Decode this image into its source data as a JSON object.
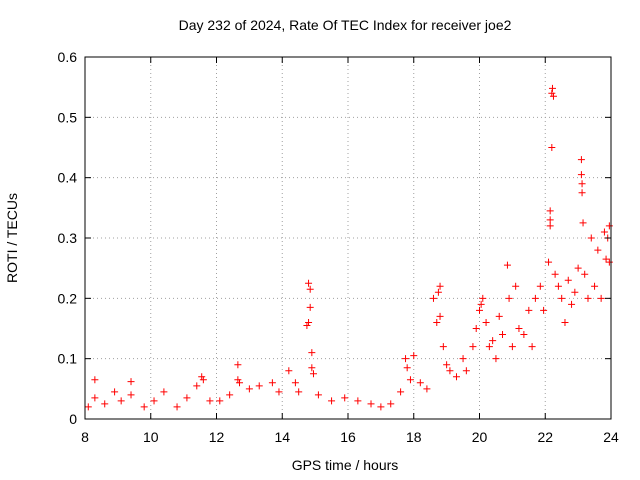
{
  "chart_data": {
    "type": "scatter",
    "title": "Day 232 of 2024, Rate Of TEC Index for receiver joe2",
    "xlabel": "GPS time / hours",
    "ylabel": "ROTI / TECUs",
    "xlim": [
      8,
      24
    ],
    "ylim": [
      0,
      0.6
    ],
    "xticks": [
      8,
      10,
      12,
      14,
      16,
      18,
      20,
      22,
      24
    ],
    "yticks": [
      0,
      0.1,
      0.2,
      0.3,
      0.4,
      0.5,
      0.6
    ],
    "xtick_labels": [
      "8",
      "10",
      "12",
      "14",
      "16",
      "18",
      "20",
      "22",
      "24"
    ],
    "ytick_labels": [
      "0",
      "0.1",
      "0.2",
      "0.3",
      "0.4",
      "0.5",
      "0.6"
    ],
    "grid": true,
    "marker": "+",
    "colors": {
      "points": "#ff0000",
      "grid": "#a0a0a0",
      "axes": "#000000",
      "background": "#ffffff"
    },
    "series": [
      {
        "points": [
          [
            8.1,
            0.02
          ],
          [
            8.3,
            0.065
          ],
          [
            8.3,
            0.035
          ],
          [
            8.6,
            0.025
          ],
          [
            8.9,
            0.045
          ],
          [
            9.1,
            0.03
          ],
          [
            9.4,
            0.062
          ],
          [
            9.4,
            0.04
          ],
          [
            9.8,
            0.02
          ],
          [
            10.1,
            0.03
          ],
          [
            10.4,
            0.045
          ],
          [
            10.8,
            0.02
          ],
          [
            11.1,
            0.035
          ],
          [
            11.4,
            0.055
          ],
          [
            11.55,
            0.07
          ],
          [
            11.6,
            0.065
          ],
          [
            11.8,
            0.03
          ],
          [
            12.1,
            0.03
          ],
          [
            12.4,
            0.04
          ],
          [
            12.65,
            0.09
          ],
          [
            12.65,
            0.065
          ],
          [
            12.7,
            0.06
          ],
          [
            13.0,
            0.05
          ],
          [
            13.3,
            0.055
          ],
          [
            13.7,
            0.06
          ],
          [
            13.9,
            0.045
          ],
          [
            14.2,
            0.08
          ],
          [
            14.4,
            0.06
          ],
          [
            14.5,
            0.045
          ],
          [
            14.75,
            0.155
          ],
          [
            14.8,
            0.16
          ],
          [
            14.8,
            0.225
          ],
          [
            14.85,
            0.215
          ],
          [
            14.85,
            0.185
          ],
          [
            14.9,
            0.11
          ],
          [
            14.9,
            0.085
          ],
          [
            14.95,
            0.075
          ],
          [
            15.1,
            0.04
          ],
          [
            15.5,
            0.03
          ],
          [
            15.9,
            0.035
          ],
          [
            16.3,
            0.03
          ],
          [
            16.7,
            0.025
          ],
          [
            17.0,
            0.02
          ],
          [
            17.3,
            0.025
          ],
          [
            17.6,
            0.045
          ],
          [
            17.75,
            0.1
          ],
          [
            17.8,
            0.085
          ],
          [
            17.9,
            0.065
          ],
          [
            18.0,
            0.105
          ],
          [
            18.2,
            0.06
          ],
          [
            18.4,
            0.05
          ],
          [
            18.6,
            0.2
          ],
          [
            18.7,
            0.16
          ],
          [
            18.75,
            0.21
          ],
          [
            18.8,
            0.22
          ],
          [
            18.8,
            0.17
          ],
          [
            18.9,
            0.12
          ],
          [
            19.0,
            0.09
          ],
          [
            19.1,
            0.08
          ],
          [
            19.3,
            0.07
          ],
          [
            19.5,
            0.1
          ],
          [
            19.6,
            0.08
          ],
          [
            19.8,
            0.12
          ],
          [
            19.9,
            0.15
          ],
          [
            20.0,
            0.18
          ],
          [
            20.05,
            0.19
          ],
          [
            20.1,
            0.2
          ],
          [
            20.2,
            0.16
          ],
          [
            20.3,
            0.12
          ],
          [
            20.4,
            0.13
          ],
          [
            20.5,
            0.1
          ],
          [
            20.6,
            0.17
          ],
          [
            20.7,
            0.14
          ],
          [
            20.85,
            0.255
          ],
          [
            20.9,
            0.2
          ],
          [
            21.0,
            0.12
          ],
          [
            21.1,
            0.22
          ],
          [
            21.2,
            0.15
          ],
          [
            21.35,
            0.14
          ],
          [
            21.5,
            0.18
          ],
          [
            21.6,
            0.12
          ],
          [
            21.7,
            0.2
          ],
          [
            21.85,
            0.22
          ],
          [
            21.95,
            0.18
          ],
          [
            22.1,
            0.26
          ],
          [
            22.15,
            0.345
          ],
          [
            22.15,
            0.33
          ],
          [
            22.15,
            0.32
          ],
          [
            22.2,
            0.45
          ],
          [
            22.2,
            0.54
          ],
          [
            22.22,
            0.548
          ],
          [
            22.25,
            0.535
          ],
          [
            22.3,
            0.24
          ],
          [
            22.4,
            0.22
          ],
          [
            22.5,
            0.2
          ],
          [
            22.6,
            0.16
          ],
          [
            22.7,
            0.23
          ],
          [
            22.8,
            0.19
          ],
          [
            22.9,
            0.21
          ],
          [
            23.0,
            0.25
          ],
          [
            23.1,
            0.43
          ],
          [
            23.1,
            0.405
          ],
          [
            23.12,
            0.39
          ],
          [
            23.12,
            0.375
          ],
          [
            23.15,
            0.325
          ],
          [
            23.2,
            0.24
          ],
          [
            23.3,
            0.2
          ],
          [
            23.4,
            0.3
          ],
          [
            23.5,
            0.22
          ],
          [
            23.6,
            0.28
          ],
          [
            23.7,
            0.2
          ],
          [
            23.8,
            0.31
          ],
          [
            23.85,
            0.265
          ],
          [
            23.9,
            0.3
          ],
          [
            23.95,
            0.32
          ],
          [
            23.95,
            0.26
          ]
        ]
      }
    ]
  }
}
